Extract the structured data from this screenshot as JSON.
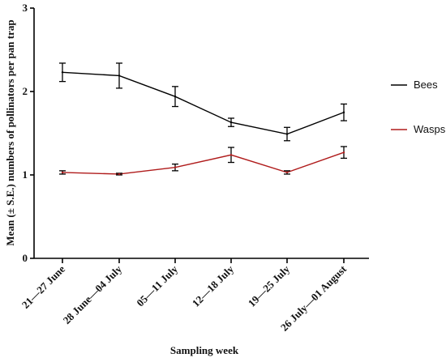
{
  "chart_data": {
    "type": "line",
    "categories": [
      "21—27 June",
      "28 June—04 July",
      "05—11 July",
      "12—18 July",
      "19—25 July",
      "26 July—01 August"
    ],
    "series": [
      {
        "name": "Bees",
        "color": "#000000",
        "values": [
          2.23,
          2.19,
          1.94,
          1.63,
          1.49,
          1.75
        ],
        "se": [
          0.11,
          0.15,
          0.12,
          0.05,
          0.08,
          0.1
        ]
      },
      {
        "name": "Wasps",
        "color": "#b01c1c",
        "values": [
          1.03,
          1.01,
          1.09,
          1.24,
          1.03,
          1.27
        ],
        "se": [
          0.02,
          0.01,
          0.04,
          0.09,
          0.02,
          0.07
        ]
      }
    ],
    "xlabel": "Sampling week",
    "ylabel": "Mean (± S.E.) numbers of pollinators per pan trap",
    "ylim": [
      0,
      3
    ],
    "yticks": [
      0,
      1,
      2,
      3
    ],
    "grid": false,
    "legend_position": "right"
  }
}
